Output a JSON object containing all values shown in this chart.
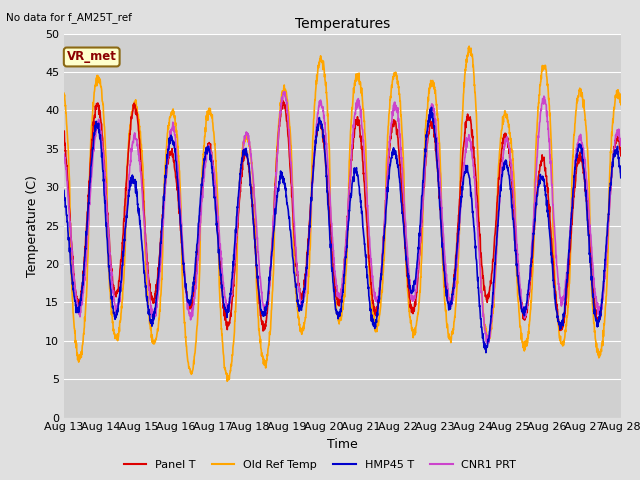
{
  "title": "Temperatures",
  "xlabel": "Time",
  "ylabel": "Temperature (C)",
  "note": "No data for f_AM25T_ref",
  "annotation": "VR_met",
  "ylim": [
    0,
    50
  ],
  "series": {
    "panel_t": {
      "label": "Panel T",
      "color": "#dd0000",
      "lw": 1.2
    },
    "old_ref": {
      "label": "Old Ref Temp",
      "color": "#ffa500",
      "lw": 1.2
    },
    "hmp45": {
      "label": "HMP45 T",
      "color": "#0000cc",
      "lw": 1.2
    },
    "cnr1": {
      "label": "CNR1 PRT",
      "color": "#cc44cc",
      "lw": 1.2
    }
  },
  "x_tick_labels": [
    "Aug 13",
    "Aug 14",
    "Aug 15",
    "Aug 16",
    "Aug 17",
    "Aug 18",
    "Aug 19",
    "Aug 20",
    "Aug 21",
    "Aug 22",
    "Aug 23",
    "Aug 24",
    "Aug 25",
    "Aug 26",
    "Aug 27",
    "Aug 28"
  ],
  "y_ticks": [
    0,
    5,
    10,
    15,
    20,
    25,
    30,
    35,
    40,
    45,
    50
  ],
  "n_days": 15,
  "points_per_day": 144
}
